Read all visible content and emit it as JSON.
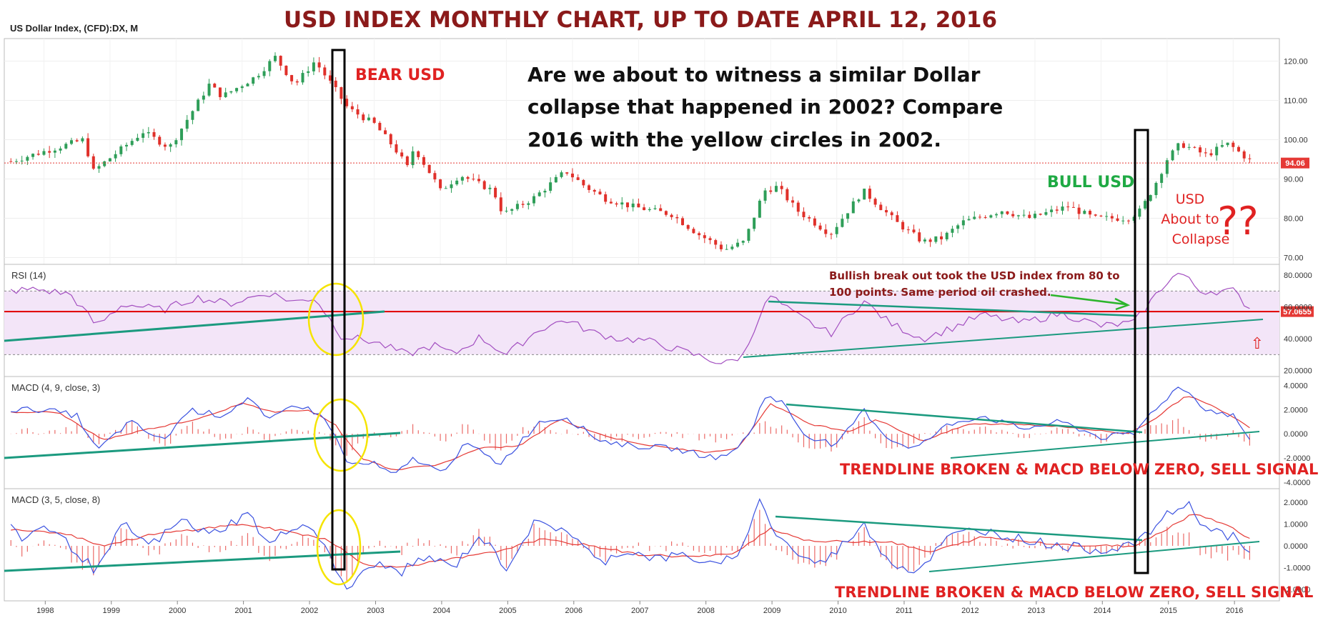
{
  "header": {
    "symbol": "US Dollar Index, (CFD):DX, M",
    "title": "USD INDEX MONTHLY CHART, UP TO DATE APRIL 12, 2016"
  },
  "colors": {
    "up": "#2e9e58",
    "down": "#e0302a",
    "rsi": "#a24ec0",
    "rsi_band": "#f3e5f8",
    "macd_line": "#3b52e0",
    "signal_line": "#e53935",
    "trendline": "#1b9a7f",
    "circle": "#f5e400",
    "red_level": "#e00000"
  },
  "annotations": {
    "question_lines": [
      "Are we about to witness a similar Dollar",
      "collapse that happened in 2002? Compare",
      "2016 with the yellow circles in 2002."
    ],
    "bear": "BEAR USD",
    "bull": "BULL USD",
    "about_lines": [
      "USD",
      "About to",
      "Collapse"
    ],
    "question_marks": "??",
    "breakout_lines": [
      "Bullish break out took the USD index from 80 to",
      "100 points. Same period oil crashed."
    ],
    "macd1_note": "TRENDLINE BROKEN & MACD BELOW ZERO, SELL SIGNAL",
    "macd2_note": "TRENDLINE BROKEN & MACD BELOW ZERO, SELL SIGNAL",
    "up_arrow": "⇧"
  },
  "chart_data": [
    {
      "type": "candlestick",
      "label": "",
      "x_unit": "year",
      "x_range": [
        1997.4,
        2016.7
      ],
      "x_ticks": [
        "1998",
        "1999",
        "2000",
        "2001",
        "2002",
        "2003",
        "2004",
        "2005",
        "2006",
        "2007",
        "2008",
        "2009",
        "2010",
        "2011",
        "2012",
        "2013",
        "2014",
        "2015",
        "2016"
      ],
      "ylim": [
        69,
        125
      ],
      "y_ticks": [
        "70.00",
        "80.00",
        "90.00",
        "100.00",
        "110.00",
        "120.00"
      ],
      "last_value": "94.06",
      "close_anchors": [
        [
          1997.5,
          94.5
        ],
        [
          1998.6,
          100
        ],
        [
          1998.75,
          92
        ],
        [
          1999.5,
          102
        ],
        [
          1999.9,
          98
        ],
        [
          2000.5,
          114
        ],
        [
          2000.7,
          111
        ],
        [
          2001.2,
          116
        ],
        [
          2001.5,
          121
        ],
        [
          2001.8,
          114
        ],
        [
          2002.1,
          120
        ],
        [
          2002.4,
          113
        ],
        [
          2002.6,
          108
        ],
        [
          2003.0,
          104
        ],
        [
          2003.3,
          98
        ],
        [
          2003.5,
          93
        ],
        [
          2003.6,
          98
        ],
        [
          2003.9,
          90
        ],
        [
          2004.0,
          87
        ],
        [
          2004.3,
          91
        ],
        [
          2004.8,
          87
        ],
        [
          2004.95,
          81
        ],
        [
          2005.4,
          85
        ],
        [
          2005.9,
          92
        ],
        [
          2006.2,
          88
        ],
        [
          2006.5,
          85
        ],
        [
          2006.9,
          83
        ],
        [
          2007.5,
          81
        ],
        [
          2007.9,
          76
        ],
        [
          2008.3,
          72
        ],
        [
          2008.6,
          74
        ],
        [
          2008.9,
          87
        ],
        [
          2009.1,
          88
        ],
        [
          2009.4,
          82
        ],
        [
          2009.9,
          76
        ],
        [
          2010.4,
          87
        ],
        [
          2010.9,
          79
        ],
        [
          2011.3,
          74
        ],
        [
          2011.6,
          75
        ],
        [
          2011.9,
          79
        ],
        [
          2012.5,
          82
        ],
        [
          2012.9,
          80
        ],
        [
          2013.5,
          83
        ],
        [
          2013.9,
          80
        ],
        [
          2014.4,
          80
        ],
        [
          2014.6,
          82
        ],
        [
          2014.8,
          88
        ],
        [
          2015.0,
          95
        ],
        [
          2015.2,
          99
        ],
        [
          2015.6,
          96
        ],
        [
          2015.9,
          99
        ],
        [
          2016.0,
          98
        ],
        [
          2016.3,
          94.06
        ]
      ]
    },
    {
      "type": "line",
      "label": "RSI (14)",
      "ylim": [
        18,
        85
      ],
      "y_ticks": [
        "20.0000",
        "40.0000",
        "60.0000",
        "80.0000"
      ],
      "band": [
        30,
        70
      ],
      "level_value": "57.0655",
      "level_y": 57.07,
      "series": [
        {
          "anchors": [
            [
              1997.4,
              70
            ],
            [
              1997.9,
              71
            ],
            [
              1998.4,
              68
            ],
            [
              1998.8,
              48
            ],
            [
              1999.2,
              62
            ],
            [
              1999.8,
              58
            ],
            [
              2000.3,
              66
            ],
            [
              2000.8,
              62
            ],
            [
              2001.4,
              69
            ],
            [
              2001.8,
              63
            ],
            [
              2002.1,
              66
            ],
            [
              2002.5,
              42
            ],
            [
              2003.0,
              38
            ],
            [
              2003.5,
              30
            ],
            [
              2003.9,
              36
            ],
            [
              2004.2,
              30
            ],
            [
              2004.6,
              41
            ],
            [
              2005.0,
              30
            ],
            [
              2005.5,
              46
            ],
            [
              2005.9,
              52
            ],
            [
              2006.3,
              44
            ],
            [
              2006.7,
              40
            ],
            [
              2007.1,
              39
            ],
            [
              2007.6,
              33
            ],
            [
              2008.0,
              28
            ],
            [
              2008.3,
              24
            ],
            [
              2008.6,
              30
            ],
            [
              2008.8,
              52
            ],
            [
              2009.0,
              67
            ],
            [
              2009.3,
              57
            ],
            [
              2009.6,
              50
            ],
            [
              2009.9,
              43
            ],
            [
              2010.4,
              64
            ],
            [
              2010.8,
              50
            ],
            [
              2011.3,
              40
            ],
            [
              2011.7,
              46
            ],
            [
              2012.2,
              55
            ],
            [
              2012.8,
              50
            ],
            [
              2013.4,
              56
            ],
            [
              2014.0,
              48
            ],
            [
              2014.5,
              50
            ],
            [
              2014.8,
              66
            ],
            [
              2015.0,
              76
            ],
            [
              2015.2,
              82
            ],
            [
              2015.5,
              70
            ],
            [
              2016.0,
              70
            ],
            [
              2016.3,
              57
            ]
          ]
        }
      ]
    },
    {
      "type": "line",
      "label": "MACD (4, 9, close, 3)",
      "ylim": [
        -4.3,
        4.5
      ],
      "y_ticks": [
        "-4.0000",
        "-2.0000",
        "0.0000",
        "2.0000",
        "4.0000"
      ],
      "series": [
        {
          "name": "",
          "anchors": [
            [
              1997.4,
              2.0
            ],
            [
              1998.0,
              2.0
            ],
            [
              1998.5,
              1.5
            ],
            [
              1998.8,
              -1.4
            ],
            [
              1999.3,
              1.0
            ],
            [
              1999.8,
              -0.6
            ],
            [
              2000.2,
              2.0
            ],
            [
              2000.7,
              1.5
            ],
            [
              2001.1,
              3.0
            ],
            [
              2001.4,
              1.0
            ],
            [
              2001.8,
              2.5
            ],
            [
              2002.1,
              1.8
            ],
            [
              2002.3,
              1.0
            ],
            [
              2002.6,
              -2.5
            ],
            [
              2003.0,
              -2.5
            ],
            [
              2003.3,
              -3.5
            ],
            [
              2003.6,
              -2.0
            ],
            [
              2004.0,
              -3.2
            ],
            [
              2004.4,
              -0.8
            ],
            [
              2004.9,
              -2.5
            ],
            [
              2005.5,
              1.0
            ],
            [
              2005.9,
              1.4
            ],
            [
              2006.4,
              -0.5
            ],
            [
              2006.9,
              -1.0
            ],
            [
              2007.5,
              -1.2
            ],
            [
              2008.0,
              -1.8
            ],
            [
              2008.3,
              -2.0
            ],
            [
              2008.7,
              0.0
            ],
            [
              2008.9,
              3.2
            ],
            [
              2009.2,
              2.5
            ],
            [
              2009.5,
              0.0
            ],
            [
              2010.0,
              -1.0
            ],
            [
              2010.4,
              2.0
            ],
            [
              2010.8,
              -0.5
            ],
            [
              2011.2,
              -1.2
            ],
            [
              2011.7,
              0.8
            ],
            [
              2012.2,
              1.5
            ],
            [
              2012.8,
              0.4
            ],
            [
              2013.4,
              1.0
            ],
            [
              2014.0,
              -0.3
            ],
            [
              2014.5,
              0.0
            ],
            [
              2014.8,
              2.0
            ],
            [
              2015.2,
              4.0
            ],
            [
              2015.6,
              2.0
            ],
            [
              2016.0,
              1.5
            ],
            [
              2016.3,
              -0.8
            ]
          ]
        },
        {
          "name": "",
          "anchors": [
            [
              1997.4,
              1.8
            ],
            [
              1998.2,
              1.8
            ],
            [
              1998.9,
              -0.5
            ],
            [
              1999.5,
              0.3
            ],
            [
              2000.3,
              1.2
            ],
            [
              2001.0,
              2.5
            ],
            [
              2001.5,
              1.8
            ],
            [
              2002.0,
              2.0
            ],
            [
              2002.4,
              0.8
            ],
            [
              2002.8,
              -2.0
            ],
            [
              2003.3,
              -3.0
            ],
            [
              2004.0,
              -2.5
            ],
            [
              2004.6,
              -1.2
            ],
            [
              2005.2,
              -1.0
            ],
            [
              2005.8,
              1.2
            ],
            [
              2006.5,
              -0.2
            ],
            [
              2007.2,
              -1.0
            ],
            [
              2008.0,
              -1.5
            ],
            [
              2008.5,
              -1.2
            ],
            [
              2009.0,
              2.5
            ],
            [
              2009.6,
              0.8
            ],
            [
              2010.2,
              0.2
            ],
            [
              2010.6,
              1.2
            ],
            [
              2011.3,
              -0.6
            ],
            [
              2012.0,
              0.8
            ],
            [
              2012.8,
              0.8
            ],
            [
              2013.6,
              0.5
            ],
            [
              2014.4,
              0.0
            ],
            [
              2014.8,
              1.2
            ],
            [
              2015.3,
              3.2
            ],
            [
              2015.8,
              2.0
            ],
            [
              2016.3,
              0.4
            ]
          ]
        }
      ]
    },
    {
      "type": "line",
      "label": "MACD (3, 5, close, 8)",
      "ylim": [
        -2.4,
        2.5
      ],
      "y_ticks": [
        "-2.0000",
        "-1.0000",
        "0.0000",
        "1.0000",
        "2.0000"
      ],
      "series": [
        {
          "name": "",
          "anchors": [
            [
              1997.4,
              1.0
            ],
            [
              1997.7,
              0.3
            ],
            [
              1998.0,
              1.0
            ],
            [
              1998.4,
              0.0
            ],
            [
              1998.8,
              -1.2
            ],
            [
              1999.2,
              1.0
            ],
            [
              1999.6,
              0.0
            ],
            [
              2000.1,
              1.2
            ],
            [
              2000.5,
              0.5
            ],
            [
              2001.1,
              1.5
            ],
            [
              2001.4,
              0.0
            ],
            [
              2001.8,
              1.0
            ],
            [
              2002.1,
              0.8
            ],
            [
              2002.4,
              -1.0
            ],
            [
              2002.6,
              -2.0
            ],
            [
              2003.0,
              -0.8
            ],
            [
              2003.4,
              -1.2
            ],
            [
              2003.8,
              -0.5
            ],
            [
              2004.2,
              -1.0
            ],
            [
              2004.6,
              0.5
            ],
            [
              2005.0,
              -1.0
            ],
            [
              2005.4,
              1.0
            ],
            [
              2005.9,
              0.8
            ],
            [
              2006.4,
              -0.8
            ],
            [
              2006.8,
              -0.2
            ],
            [
              2007.3,
              -0.6
            ],
            [
              2007.7,
              -0.4
            ],
            [
              2008.2,
              -1.0
            ],
            [
              2008.6,
              0.0
            ],
            [
              2008.8,
              2.2
            ],
            [
              2009.1,
              0.5
            ],
            [
              2009.5,
              -0.6
            ],
            [
              2009.8,
              -0.8
            ],
            [
              2010.4,
              1.0
            ],
            [
              2010.8,
              -0.7
            ],
            [
              2011.2,
              -1.2
            ],
            [
              2011.7,
              0.4
            ],
            [
              2012.1,
              0.8
            ],
            [
              2012.8,
              0.3
            ],
            [
              2013.4,
              0.0
            ],
            [
              2014.0,
              -0.2
            ],
            [
              2014.6,
              0.2
            ],
            [
              2014.9,
              1.2
            ],
            [
              2015.3,
              2.0
            ],
            [
              2015.6,
              0.8
            ],
            [
              2016.0,
              0.4
            ],
            [
              2016.3,
              -0.6
            ]
          ]
        },
        {
          "name": "",
          "anchors": [
            [
              1997.4,
              0.8
            ],
            [
              1998.3,
              0.6
            ],
            [
              1998.9,
              0.0
            ],
            [
              1999.6,
              0.5
            ],
            [
              2000.4,
              0.8
            ],
            [
              2001.0,
              1.0
            ],
            [
              2001.8,
              0.6
            ],
            [
              2002.3,
              0.3
            ],
            [
              2002.8,
              -0.8
            ],
            [
              2003.3,
              -1.0
            ],
            [
              2004.0,
              -0.7
            ],
            [
              2004.8,
              -0.3
            ],
            [
              2005.5,
              0.3
            ],
            [
              2006.3,
              0.0
            ],
            [
              2007.0,
              -0.4
            ],
            [
              2007.8,
              -0.5
            ],
            [
              2008.4,
              -0.4
            ],
            [
              2009.0,
              0.8
            ],
            [
              2009.6,
              0.2
            ],
            [
              2010.3,
              0.2
            ],
            [
              2010.8,
              0.2
            ],
            [
              2011.4,
              -0.3
            ],
            [
              2012.2,
              0.4
            ],
            [
              2012.9,
              0.2
            ],
            [
              2013.7,
              0.0
            ],
            [
              2014.5,
              0.0
            ],
            [
              2015.0,
              0.8
            ],
            [
              2015.4,
              1.5
            ],
            [
              2015.9,
              1.0
            ],
            [
              2016.3,
              0.2
            ]
          ]
        }
      ]
    }
  ]
}
